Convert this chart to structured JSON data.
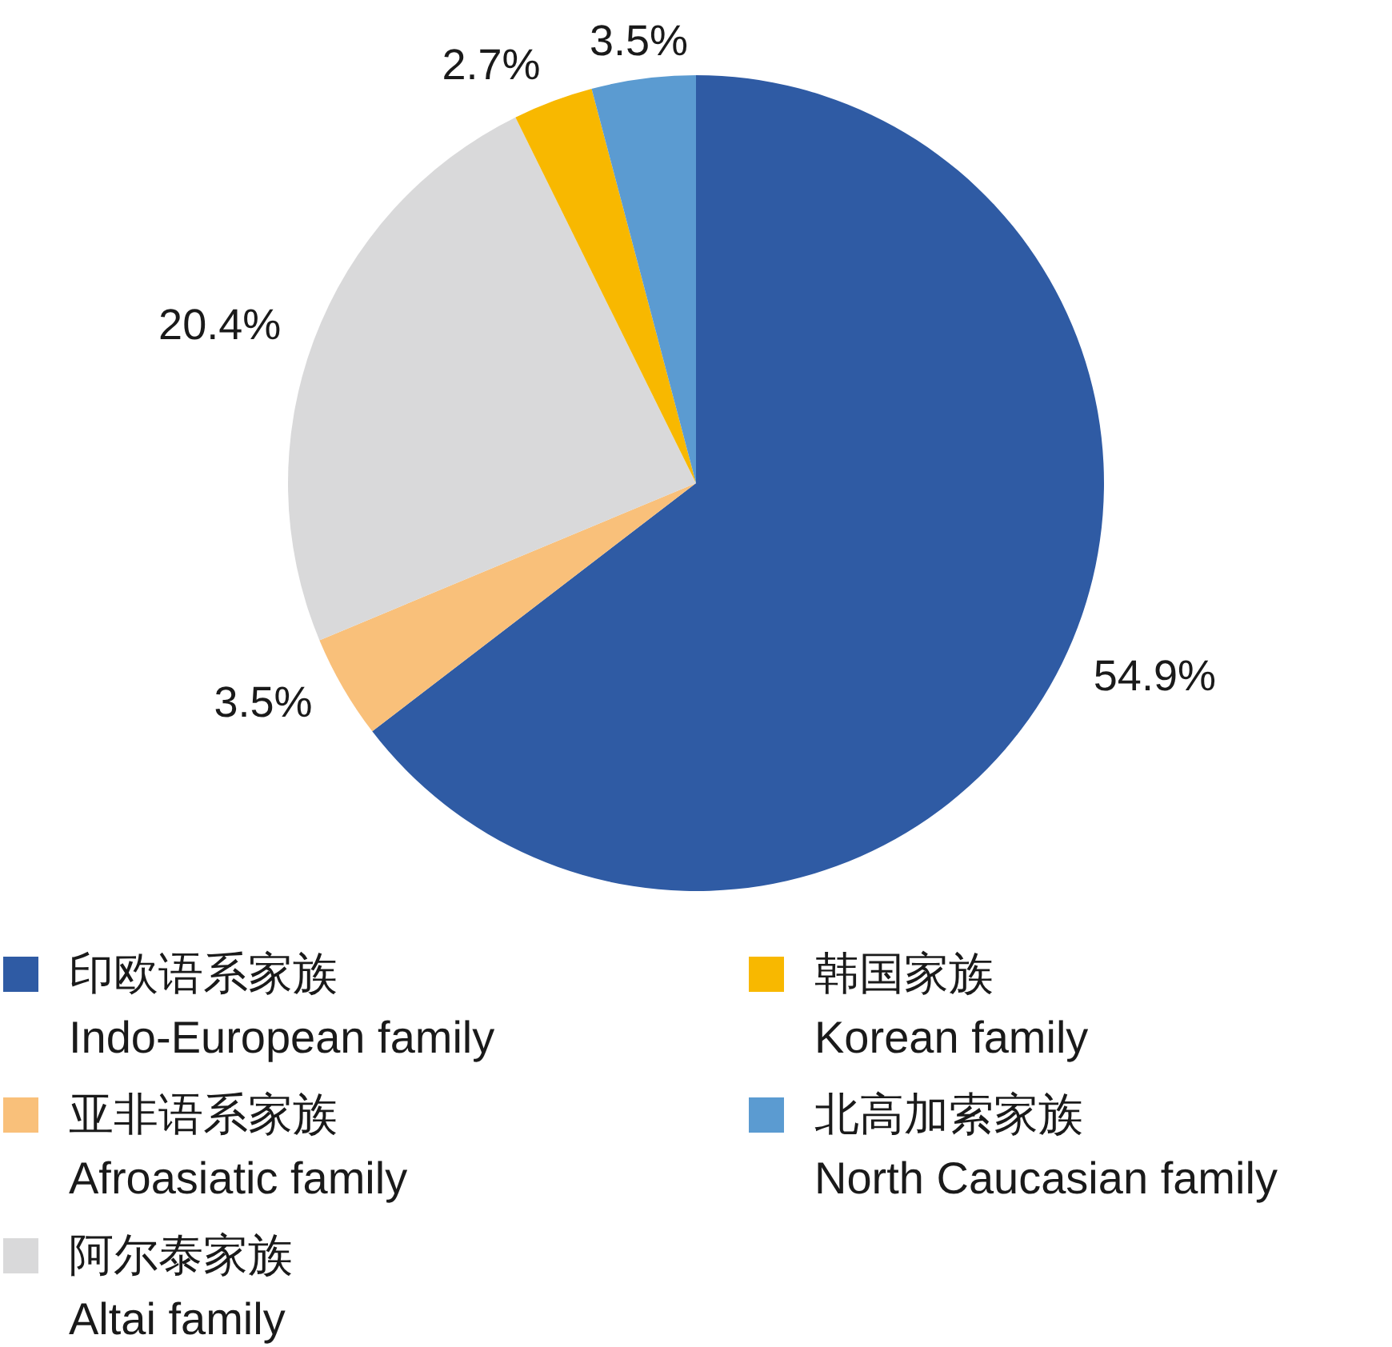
{
  "chart_data": {
    "type": "pie",
    "categories": [
      "印欧语系家族\nIndo-European family",
      "亚非语系家族\nAfroasiatic family",
      "阿尔泰家族\nAltai family",
      "韩国家族\nKorean family",
      "北高加索家族\nNorth Caucasian family"
    ],
    "values": [
      54.9,
      3.5,
      20.4,
      2.7,
      3.5
    ],
    "colors": [
      "#2f5ba4",
      "#f9c07a",
      "#d9d9da",
      "#f8b800",
      "#5b9bd1"
    ],
    "value_labels": [
      "54.9%",
      "3.5%",
      "20.4%",
      "2.7%",
      "3.5%"
    ],
    "legend": "bottom"
  }
}
